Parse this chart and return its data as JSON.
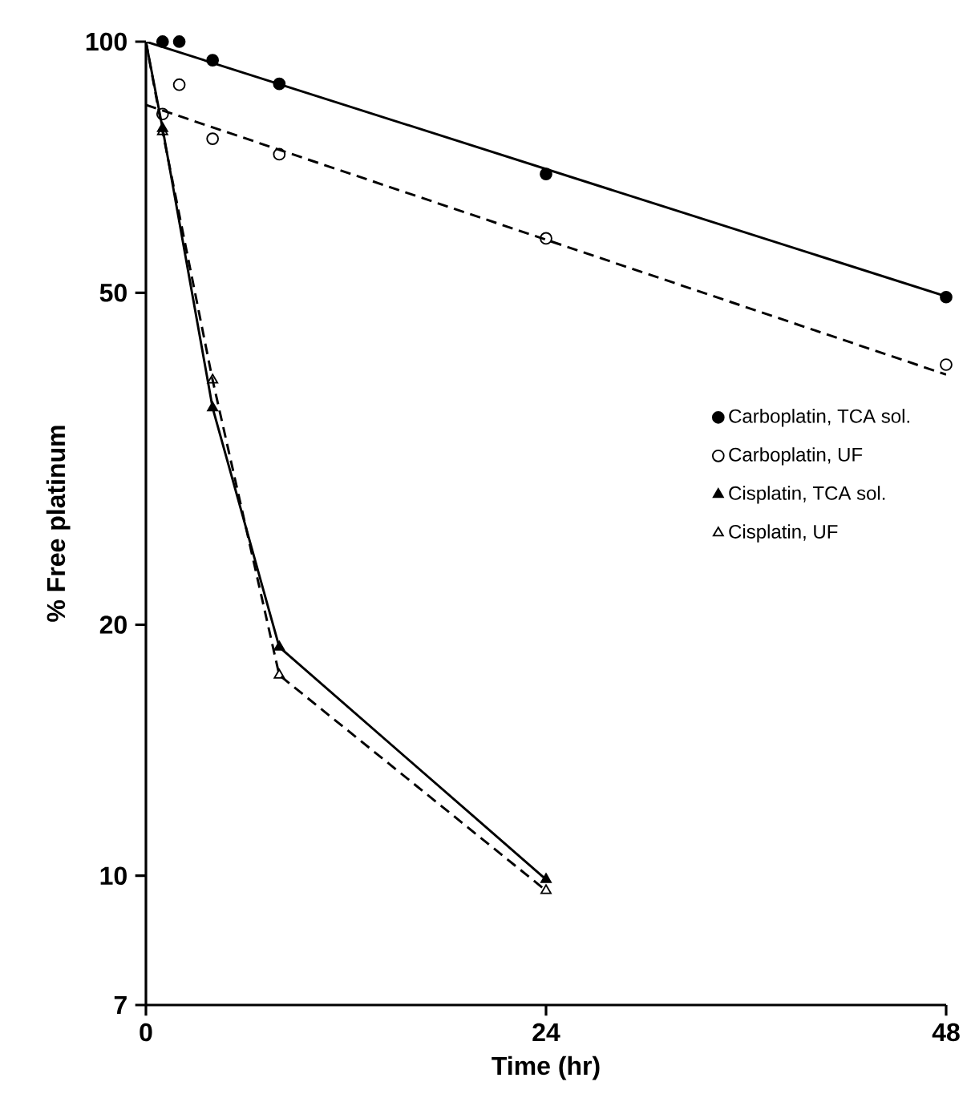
{
  "chart_data": {
    "type": "scatter",
    "xlabel": "Time (hr)",
    "ylabel": "% Free platinum",
    "log": "y",
    "xlim": [
      0,
      48
    ],
    "xticks": [
      0,
      24,
      48
    ],
    "ylim": [
      7,
      100
    ],
    "yticks": [
      7,
      10,
      20,
      50,
      100
    ],
    "legend": "right",
    "series": [
      {
        "name": "Carboplatin, TCA sol.",
        "marker": "circle",
        "color": "#000000",
        "x": [
          1,
          2,
          4,
          8,
          24,
          48
        ],
        "values": [
          100,
          100,
          95,
          89,
          69.4,
          49.4
        ]
      },
      {
        "name": "Carboplatin, UF",
        "marker": "circle-open",
        "color": "#000000",
        "x": [
          1,
          2,
          4,
          8,
          24,
          48
        ],
        "values": [
          81.9,
          88.8,
          76.5,
          73.3,
          58.1,
          41
        ]
      },
      {
        "name": "Cisplatin, TCA sol.",
        "marker": "triangle",
        "color": "#000000",
        "x": [
          1,
          4,
          8,
          24
        ],
        "values": [
          78.7,
          36.4,
          18.8,
          9.9
        ]
      },
      {
        "name": "Cisplatin, UF",
        "marker": "triangle-open",
        "color": "#000000",
        "x": [
          1,
          4,
          8,
          24
        ],
        "values": [
          78,
          39.3,
          17.4,
          9.6
        ]
      },
      {
        "type": "line",
        "line_style": "solid",
        "color": "#000000",
        "x": [
          0,
          48
        ],
        "values": [
          100,
          49.5
        ]
      },
      {
        "type": "line",
        "line_style": "dashed",
        "color": "#000000",
        "x": [
          0,
          48
        ],
        "values": [
          84,
          39.9
        ]
      },
      {
        "type": "line",
        "line_style": "solid",
        "color": "#000000",
        "x": [
          0,
          1,
          4,
          8,
          24
        ],
        "values": [
          100,
          78.7,
          36.4,
          18.8,
          9.9
        ]
      },
      {
        "type": "line",
        "line_style": "dashed",
        "color": "#000000",
        "x": [
          0,
          1,
          4,
          8,
          24
        ],
        "values": [
          100,
          78,
          39.3,
          17.4,
          9.6
        ]
      }
    ]
  }
}
